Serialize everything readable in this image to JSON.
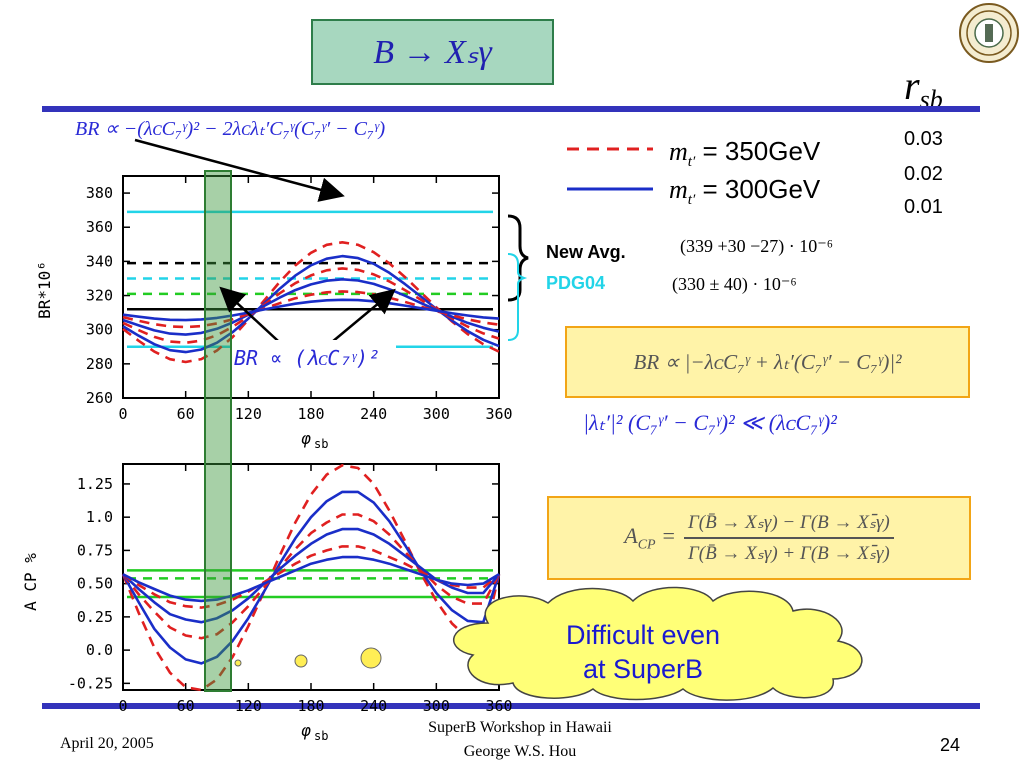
{
  "slide": {
    "title": "B → Xₛγ",
    "rsb_label": "r",
    "rsb_sub": "sb",
    "rsb_values": [
      "0.03",
      "0.02",
      "0.01"
    ],
    "legend": [
      {
        "label": "m",
        "sub": "t′",
        "text": " = 350GeV",
        "color": "#e02020",
        "style": "dashed"
      },
      {
        "label": "m",
        "sub": "t′",
        "text": " = 300GeV",
        "color": "#1a2ec8",
        "style": "solid"
      }
    ],
    "br_formula_top": "BR ∝ −(λᴄC₇ᵞ)² − 2λᴄλₜ′C₇ᵞ(C₇ᵞ′ − C₇ᵞ)",
    "br_formula_mid": "BR ∝ (λᴄC₇ᵞ)²",
    "new_avg_label": "New Avg.",
    "new_avg_value": "(339 +30 −27) · 10⁻⁶",
    "pdg_label": "PDG04",
    "pdg_value": "(330 ± 40) · 10⁻⁶",
    "br_box_formula": "BR ∝ |−λᴄC₇ᵞ + λₜ′(C₇ᵞ′ − C₇ᵞ)|²",
    "inequality": "|λₜ′|² (C₇ᵞ′ − C₇ᵞ)² ≪ (λᴄC₇ᵞ)²",
    "acp_formula_lhs": "A",
    "acp_formula_lhs_sub": "CP",
    "acp_formula_num": "Γ(B̄ → Xₛγ) − Γ(B → Xₛ̄γ)",
    "acp_formula_den": "Γ(B̄ → Xₛγ) + Γ(B → Xₛ̄γ)",
    "cloud_text_1": "Difficult even",
    "cloud_text_2": "at  SuperB",
    "footer_date": "April 20, 2005",
    "footer_event": "SuperB Workshop in Hawaii",
    "footer_author": "George W.S. Hou",
    "page_number": "24"
  },
  "chart_data": [
    {
      "type": "line",
      "ylabel": "BR*10⁶",
      "xlabel": "φ",
      "xlabel_sub": "sb",
      "xlim": [
        0,
        360
      ],
      "ylim": [
        260,
        390
      ],
      "xticks": [
        0,
        60,
        120,
        180,
        240,
        300,
        360
      ],
      "yticks": [
        260,
        280,
        300,
        320,
        340,
        360,
        380
      ],
      "x_step": 15,
      "series": [
        {
          "color": "#e02020",
          "dash": true,
          "values": [
            300.4,
            293.5,
            287.2,
            282.7,
            281.1,
            282.8,
            287.8,
            295.7,
            305.8,
            317.0,
            328.0,
            337.6,
            345.0,
            349.7,
            351.2,
            349.7,
            345.4,
            338.9,
            330.8,
            322.0,
            313.1,
            304.8,
            297.4,
            291.5,
            287.2
          ]
        },
        {
          "color": "#1a2ec8",
          "dash": false,
          "values": [
            302.0,
            296.5,
            291.5,
            288.0,
            286.9,
            288.4,
            292.4,
            298.6,
            306.5,
            315.3,
            324.0,
            331.7,
            337.7,
            341.6,
            343.1,
            341.9,
            338.6,
            333.3,
            326.7,
            319.5,
            312.2,
            305.3,
            299.1,
            294.1,
            290.4
          ]
        },
        {
          "color": "#e02020",
          "dash": true,
          "values": [
            304.0,
            299.7,
            295.8,
            293.1,
            292.3,
            293.6,
            296.8,
            301.7,
            307.8,
            314.6,
            321.3,
            327.2,
            331.8,
            334.8,
            335.9,
            335.0,
            332.4,
            328.3,
            323.2,
            317.6,
            312.0,
            306.6,
            301.8,
            297.8,
            294.8
          ]
        },
        {
          "color": "#1a2ec8",
          "dash": false,
          "values": [
            305.7,
            302.5,
            299.6,
            297.7,
            297.1,
            298.1,
            300.5,
            304.2,
            308.8,
            313.9,
            318.8,
            323.2,
            326.5,
            328.7,
            329.5,
            328.8,
            326.8,
            323.7,
            319.9,
            315.7,
            311.6,
            307.6,
            304.0,
            301.1,
            298.9
          ]
        },
        {
          "color": "#e02020",
          "dash": true,
          "values": [
            307.3,
            305.2,
            303.2,
            301.9,
            301.5,
            302.1,
            303.7,
            306.1,
            309.1,
            312.3,
            315.5,
            318.4,
            320.5,
            321.9,
            322.4,
            322.0,
            320.7,
            318.7,
            316.3,
            313.6,
            310.9,
            308.4,
            306.1,
            304.2,
            302.9
          ]
        },
        {
          "color": "#1a2ec8",
          "dash": false,
          "values": [
            308.8,
            307.6,
            306.5,
            305.8,
            305.6,
            306.0,
            306.9,
            308.3,
            310.0,
            311.8,
            313.6,
            315.2,
            316.4,
            317.2,
            317.5,
            317.3,
            316.6,
            315.5,
            314.1,
            312.6,
            311.1,
            309.6,
            308.3,
            307.2,
            306.5
          ]
        }
      ],
      "hlines": [
        {
          "y": 369,
          "color": "#22d4e8",
          "dash": false
        },
        {
          "y": 339,
          "color": "#000000",
          "dash": true
        },
        {
          "y": 330,
          "color": "#22d4e8",
          "dash": true
        },
        {
          "y": 321,
          "color": "#22cc22",
          "dash": true
        },
        {
          "y": 312,
          "color": "#000000",
          "dash": false
        },
        {
          "y": 290,
          "color": "#22d4e8",
          "dash": false
        }
      ]
    },
    {
      "type": "line",
      "ylabel": "A",
      "ylabel_sub": "CP",
      "ylabel_unit": "%",
      "xlabel": "φ",
      "xlabel_sub": "sb",
      "xlim": [
        0,
        360
      ],
      "ylim": [
        -0.3,
        1.4
      ],
      "xticks": [
        0,
        60,
        120,
        180,
        240,
        300,
        360
      ],
      "yticks": [
        -0.25,
        0.0,
        0.25,
        0.5,
        0.75,
        1.0,
        1.25
      ],
      "ytick_labels": [
        "-0.25",
        "0.0",
        "0.25",
        "0.50",
        "0.75",
        "1.0",
        "1.25"
      ],
      "x_step": 15,
      "series": [
        {
          "color": "#e02020",
          "dash": true,
          "values": [
            0.57,
            0.28,
            0.02,
            -0.17,
            -0.28,
            -0.3,
            -0.22,
            -0.05,
            0.18,
            0.44,
            0.71,
            0.96,
            1.17,
            1.32,
            1.39,
            1.37,
            1.25,
            1.05,
            0.82,
            0.58,
            0.37,
            0.2,
            0.09,
            0.06,
            0.57
          ]
        },
        {
          "color": "#1a2ec8",
          "dash": false,
          "values": [
            0.57,
            0.36,
            0.16,
            0.02,
            -0.07,
            -0.1,
            -0.05,
            0.07,
            0.24,
            0.44,
            0.65,
            0.84,
            1.0,
            1.12,
            1.19,
            1.19,
            1.11,
            0.97,
            0.79,
            0.6,
            0.43,
            0.3,
            0.22,
            0.21,
            0.57
          ]
        },
        {
          "color": "#e02020",
          "dash": true,
          "values": [
            0.57,
            0.42,
            0.29,
            0.17,
            0.11,
            0.09,
            0.12,
            0.21,
            0.33,
            0.47,
            0.62,
            0.76,
            0.88,
            0.96,
            1.02,
            1.02,
            0.97,
            0.87,
            0.74,
            0.61,
            0.49,
            0.4,
            0.35,
            0.35,
            0.57
          ]
        },
        {
          "color": "#1a2ec8",
          "dash": false,
          "values": [
            0.57,
            0.46,
            0.36,
            0.27,
            0.23,
            0.21,
            0.24,
            0.3,
            0.39,
            0.5,
            0.61,
            0.71,
            0.8,
            0.87,
            0.91,
            0.91,
            0.87,
            0.8,
            0.71,
            0.62,
            0.53,
            0.47,
            0.43,
            0.43,
            0.57
          ]
        },
        {
          "color": "#e02020",
          "dash": true,
          "values": [
            0.57,
            0.49,
            0.42,
            0.36,
            0.33,
            0.32,
            0.34,
            0.38,
            0.44,
            0.51,
            0.58,
            0.65,
            0.71,
            0.75,
            0.78,
            0.78,
            0.75,
            0.7,
            0.65,
            0.59,
            0.53,
            0.49,
            0.47,
            0.47,
            0.57
          ]
        },
        {
          "color": "#1a2ec8",
          "dash": false,
          "values": [
            0.57,
            0.51,
            0.46,
            0.41,
            0.38,
            0.37,
            0.38,
            0.41,
            0.45,
            0.5,
            0.55,
            0.6,
            0.65,
            0.68,
            0.7,
            0.7,
            0.68,
            0.65,
            0.61,
            0.57,
            0.53,
            0.5,
            0.49,
            0.5,
            0.57
          ]
        }
      ],
      "hlines": [
        {
          "y": 0.6,
          "color": "#22cc22",
          "dash": false
        },
        {
          "y": 0.54,
          "color": "#22cc22",
          "dash": true
        },
        {
          "y": 0.4,
          "color": "#22cc22",
          "dash": false
        }
      ]
    }
  ]
}
